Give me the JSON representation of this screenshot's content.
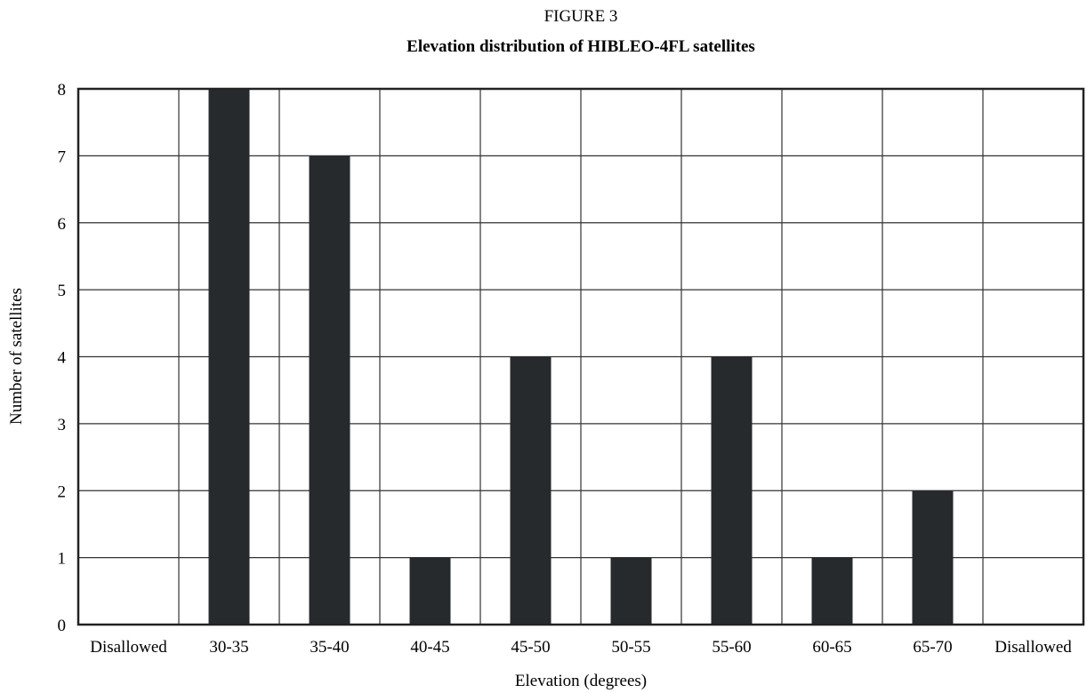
{
  "chart_data": {
    "type": "bar",
    "figure_label": "FIGURE 3",
    "title": "Elevation distribution of HIBLEO-4FL satellites",
    "xlabel": "Elevation (degrees)",
    "ylabel": "Number of satellites",
    "categories": [
      "Disallowed",
      "30-35",
      "35-40",
      "40-45",
      "45-50",
      "50-55",
      "55-60",
      "60-65",
      "65-70",
      "Disallowed"
    ],
    "values": [
      0,
      8,
      7,
      1,
      4,
      1,
      4,
      1,
      2,
      0
    ],
    "ylim": [
      0,
      8
    ],
    "yticks": [
      "0",
      "1",
      "2",
      "3",
      "4",
      "5",
      "6",
      "7",
      "8"
    ],
    "grid": true,
    "legend": "none",
    "bar_color": "#272a2d"
  }
}
